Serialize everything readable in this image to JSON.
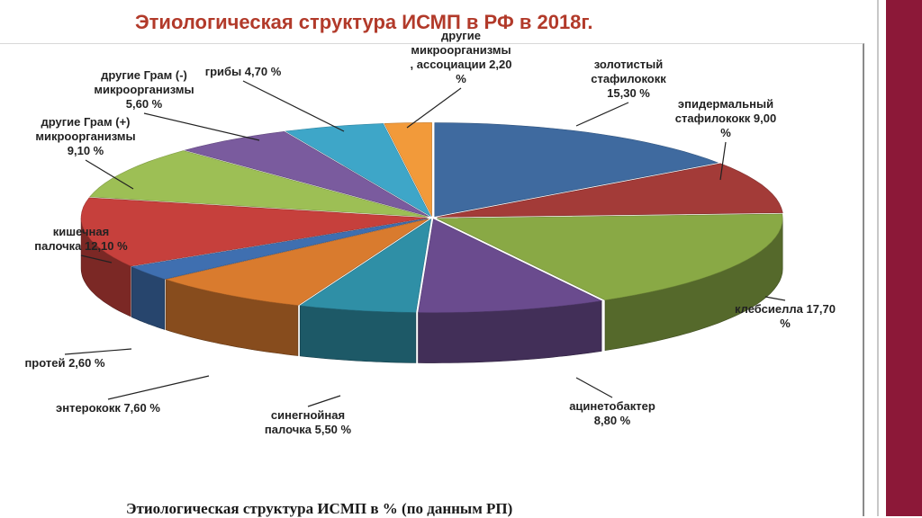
{
  "slide": {
    "title": "Этиологическая структура ИСМП в РФ в 2018г.",
    "caption": "Этиологическая структура ИСМП в % (по данным РП)"
  },
  "chart_data": {
    "type": "pie",
    "style": "3d",
    "title": "",
    "slices": [
      {
        "label_lines": [
          "золотистый",
          "стафилококк",
          "15,30 %"
        ],
        "value": 15.3,
        "color": "#3f6a9f"
      },
      {
        "label_lines": [
          "эпидермальный",
          "стафилококк 9,00",
          "%"
        ],
        "value": 9.0,
        "color": "#a33b38"
      },
      {
        "label_lines": [
          "клебсиелла 17,70",
          "%"
        ],
        "value": 17.7,
        "color": "#89a945"
      },
      {
        "label_lines": [
          "ацинетобактер",
          "8,80 %"
        ],
        "value": 8.8,
        "color": "#6a4b8e"
      },
      {
        "label_lines": [
          "синегнойная",
          "палочка 5,50 %"
        ],
        "value": 5.5,
        "color": "#2f8fa6"
      },
      {
        "label_lines": [
          "энтерококк 7,60 %"
        ],
        "value": 7.6,
        "color": "#d97b2e"
      },
      {
        "label_lines": [
          "протей 2,60 %"
        ],
        "value": 2.6,
        "color": "#3f6fb0"
      },
      {
        "label_lines": [
          "кишечная",
          "палочка 12,10 %"
        ],
        "value": 12.1,
        "color": "#c6403c"
      },
      {
        "label_lines": [
          "другие Грам (+)",
          "микроорганизмы",
          "9,10 %"
        ],
        "value": 9.1,
        "color": "#9dbf55"
      },
      {
        "label_lines": [
          "другие Грам (-)",
          "микроорганизмы",
          "5,60 %"
        ],
        "value": 5.6,
        "color": "#7a5b9e"
      },
      {
        "label_lines": [
          "грибы 4,70 %"
        ],
        "value": 4.7,
        "color": "#3ea6c8"
      },
      {
        "label_lines": [
          "другие",
          "микроорганизмы",
          ", ассоциации 2,20",
          "%"
        ],
        "value": 2.2,
        "color": "#f29a3a"
      }
    ]
  }
}
